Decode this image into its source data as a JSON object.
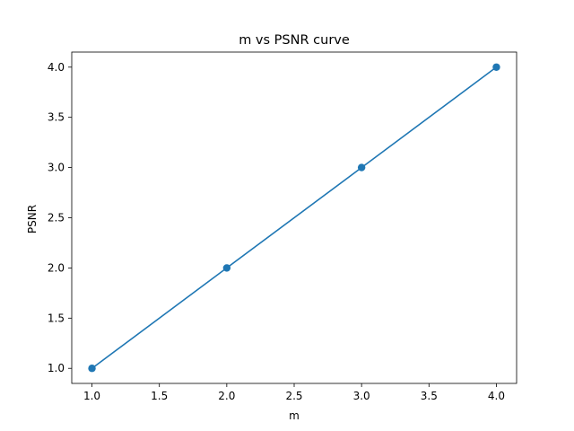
{
  "chart_data": {
    "type": "line",
    "title": "m vs PSNR curve",
    "xlabel": "m",
    "ylabel": "PSNR",
    "x": [
      1.0,
      2.0,
      3.0,
      4.0
    ],
    "series": [
      {
        "values": [
          1.0,
          2.0,
          3.0,
          4.0
        ],
        "color": "#1f77b4",
        "marker": "circle"
      }
    ],
    "xlim": [
      0.85,
      4.15
    ],
    "ylim": [
      0.85,
      4.15
    ],
    "xticks": [
      1.0,
      1.5,
      2.0,
      2.5,
      3.0,
      3.5,
      4.0
    ],
    "xtick_labels": [
      "1.0",
      "1.5",
      "2.0",
      "2.5",
      "3.0",
      "3.5",
      "4.0"
    ],
    "yticks": [
      1.0,
      1.5,
      2.0,
      2.5,
      3.0,
      3.5,
      4.0
    ],
    "ytick_labels": [
      "1.0",
      "1.5",
      "2.0",
      "2.5",
      "3.0",
      "3.5",
      "4.0"
    ],
    "grid": false,
    "legend": "none"
  }
}
